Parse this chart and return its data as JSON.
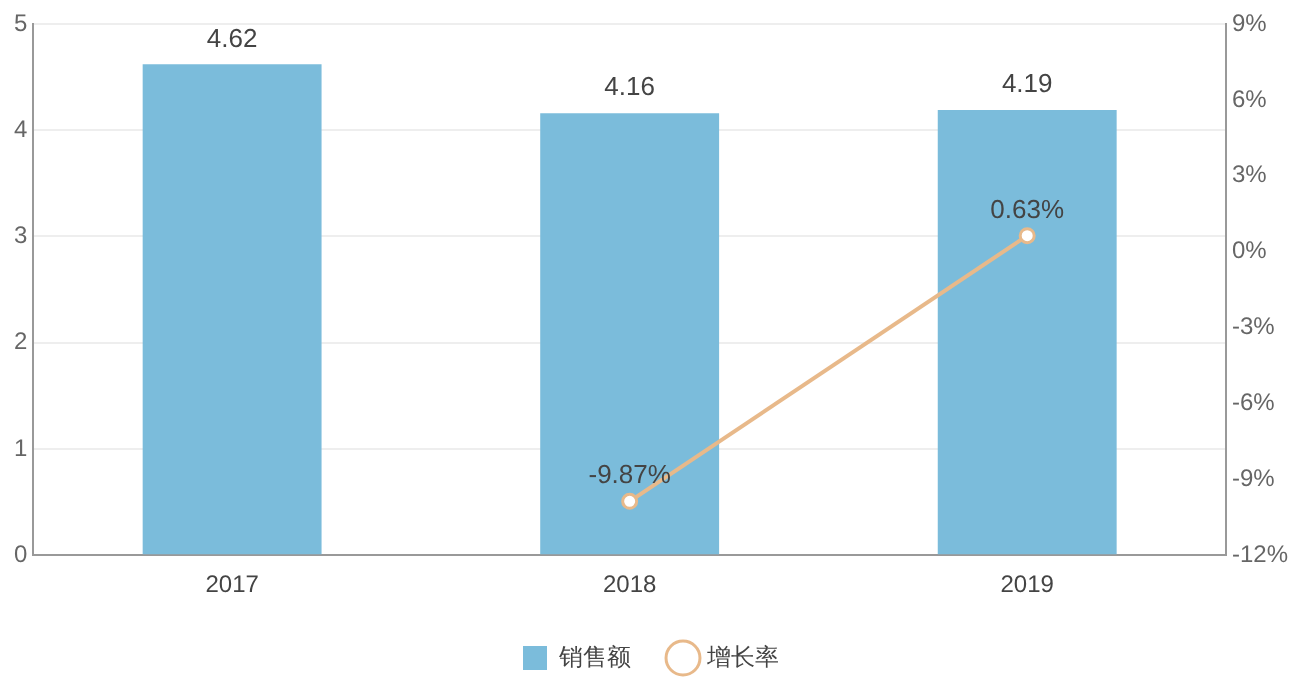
{
  "chart_data": {
    "type": "bar",
    "categories": [
      "2017",
      "2018",
      "2019"
    ],
    "series": [
      {
        "name": "销售额",
        "color": "#7bbcdb",
        "values": [
          4.62,
          4.16,
          4.19
        ],
        "value_labels": [
          "4.62",
          "4.16",
          "4.19"
        ]
      },
      {
        "name": "增长率",
        "type": "line",
        "axis": "y2",
        "color": "#e8b98a",
        "values": [
          null,
          -9.87,
          0.63
        ],
        "value_labels": [
          null,
          "-9.87%",
          "0.63%"
        ]
      }
    ],
    "ylim": [
      0,
      5
    ],
    "yticks": [
      0,
      1,
      2,
      3,
      4,
      5
    ],
    "y2lim": [
      -12,
      9
    ],
    "y2ticks": [
      {
        "value": -12,
        "label": "-12%"
      },
      {
        "value": -9,
        "label": "-9%"
      },
      {
        "value": -6,
        "label": "-6%"
      },
      {
        "value": -3,
        "label": "-3%"
      },
      {
        "value": 0,
        "label": "0%"
      },
      {
        "value": 3,
        "label": "3%"
      },
      {
        "value": 6,
        "label": "6%"
      },
      {
        "value": 9,
        "label": "9%"
      }
    ],
    "grid": "y",
    "legend": "bottom",
    "marker": "circle"
  }
}
